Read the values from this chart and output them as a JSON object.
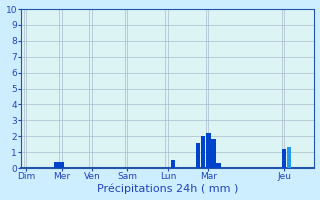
{
  "title": "Précipitations 24h ( mm )",
  "background_color": "#cceeff",
  "plot_bg_color": "#ddf4f4",
  "grid_color": "#aabbcc",
  "bar_color_dark": "#0044cc",
  "bar_color_light": "#2299ee",
  "ylim": [
    0,
    10
  ],
  "yticks": [
    0,
    1,
    2,
    3,
    4,
    5,
    6,
    7,
    8,
    9,
    10
  ],
  "day_labels": [
    "Dim",
    "Mer",
    "Ven",
    "Sam",
    "Lun",
    "Mar",
    "Jeu"
  ],
  "day_tick_positions": [
    1,
    8,
    14,
    21,
    29,
    37,
    52
  ],
  "bars": [
    {
      "x": 7,
      "height": 0.4,
      "color": "dark"
    },
    {
      "x": 8,
      "height": 0.4,
      "color": "dark"
    },
    {
      "x": 30,
      "height": 0.5,
      "color": "dark"
    },
    {
      "x": 35,
      "height": 1.6,
      "color": "dark"
    },
    {
      "x": 36,
      "height": 2.0,
      "color": "dark"
    },
    {
      "x": 37,
      "height": 2.2,
      "color": "dark"
    },
    {
      "x": 38,
      "height": 1.8,
      "color": "dark"
    },
    {
      "x": 39,
      "height": 0.3,
      "color": "dark"
    },
    {
      "x": 52,
      "height": 1.2,
      "color": "dark"
    },
    {
      "x": 53,
      "height": 1.3,
      "color": "light"
    }
  ],
  "xlim": [
    0,
    58
  ],
  "tick_fontsize": 6.5,
  "xlabel_fontsize": 8,
  "ylabel_fontsize": 6.5,
  "tick_color": "#2244bb",
  "label_color": "#2244bb",
  "title_color": "#2244bb",
  "axis_color": "#2244bb",
  "spine_color": "#2255aa"
}
